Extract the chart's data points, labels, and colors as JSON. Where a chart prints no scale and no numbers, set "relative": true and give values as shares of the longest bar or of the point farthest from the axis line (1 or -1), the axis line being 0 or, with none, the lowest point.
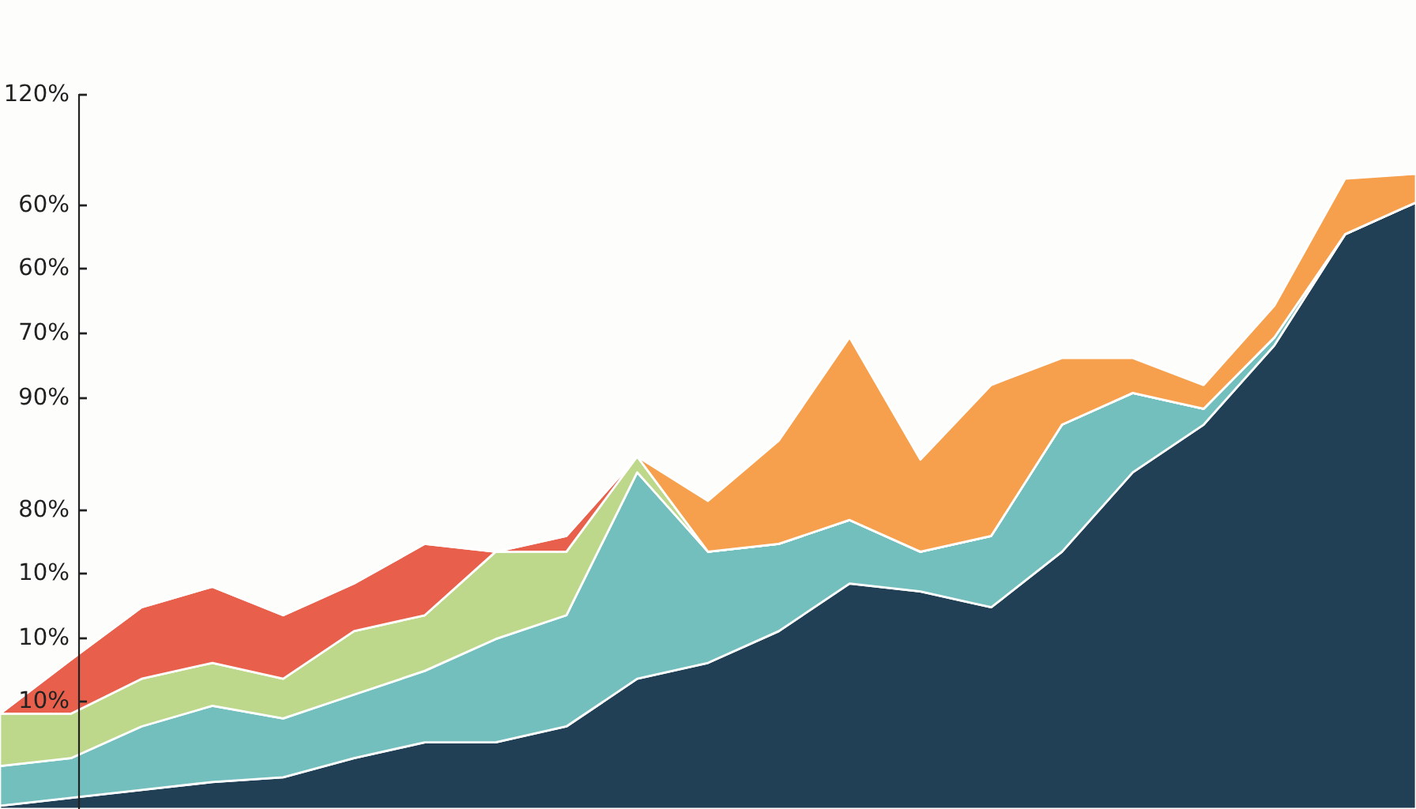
{
  "chart_data": {
    "type": "area",
    "stacked": true,
    "relative": true,
    "categories": [
      null,
      null,
      null,
      null,
      null,
      null,
      null,
      null,
      null,
      null,
      null,
      null,
      null,
      null,
      null,
      null,
      null,
      null,
      null,
      null,
      null
    ],
    "annotations": [
      "120%",
      "60%",
      "60%",
      "70%",
      "90%",
      "80%",
      "10%",
      "10%",
      "10%"
    ],
    "series": [
      {
        "color": "#213f55",
        "values": [
          0.005,
          0.0175,
          0.03,
          0.0425,
          0.05,
          0.08,
          0.105,
          0.105,
          0.13,
          0.205,
          0.23,
          0.28,
          0.355,
          0.3425,
          0.3175,
          0.405,
          0.53,
          0.605,
          0.73,
          0.905,
          0.955
        ]
      },
      {
        "color": "#72bfbd",
        "values": [
          0.0625,
          0.0625,
          0.1,
          0.12,
          0.0925,
          0.1,
          0.1125,
          0.1625,
          0.175,
          0.325,
          0.175,
          0.1375,
          0.1,
          0.0625,
          0.1125,
          0.2,
          0.125,
          0.025,
          0.0125,
          0,
          0
        ]
      },
      {
        "color": "#bdd88a",
        "values": [
          0.0825,
          0.07,
          0.075,
          0.0675,
          0.0625,
          0.1,
          0.0875,
          0.1375,
          0.1,
          0.025,
          0,
          0,
          0,
          0,
          0,
          0,
          0,
          0,
          0,
          0,
          0
        ]
      },
      {
        "color": "#e8604c",
        "values": [
          0,
          0.085,
          0.1125,
          0.12,
          0.1,
          0.075,
          0.1125,
          0,
          0.025,
          0,
          0,
          0,
          0,
          0,
          0,
          0,
          0,
          0,
          0,
          0,
          0
        ]
      },
      {
        "color": "#f6a04d",
        "values": [
          0,
          0,
          0,
          0,
          0,
          0,
          0,
          0,
          0,
          0,
          0.08,
          0.1625,
          0.2875,
          0.145,
          0.2375,
          0.105,
          0.055,
          0.0375,
          0.05,
          0.0875,
          0.045
        ]
      }
    ]
  }
}
